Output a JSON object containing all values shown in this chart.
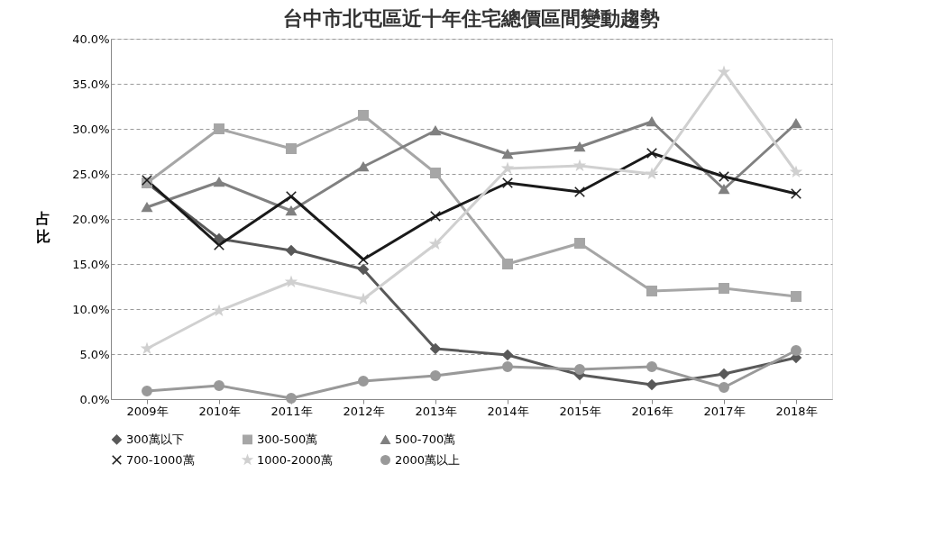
{
  "chart_data": {
    "type": "line",
    "title": "台中市北屯區近十年住宅總價區間變動趨勢",
    "ylabel": "占比",
    "categories": [
      "2009年",
      "2010年",
      "2011年",
      "2012年",
      "2013年",
      "2014年",
      "2015年",
      "2016年",
      "2017年",
      "2018年"
    ],
    "series": [
      {
        "name": "300萬以下",
        "color": "#595959",
        "marker": "diamond",
        "values": [
          24.0,
          17.8,
          16.5,
          14.4,
          5.6,
          4.9,
          2.7,
          1.6,
          2.8,
          4.6
        ]
      },
      {
        "name": "300-500萬",
        "color": "#a6a6a6",
        "marker": "square",
        "values": [
          24.0,
          30.0,
          27.8,
          31.5,
          25.1,
          15.0,
          17.3,
          12.0,
          12.3,
          11.4
        ]
      },
      {
        "name": "500-700萬",
        "color": "#808080",
        "marker": "triangle",
        "values": [
          21.3,
          24.1,
          20.9,
          25.8,
          29.8,
          27.2,
          28.0,
          30.8,
          23.3,
          30.6
        ]
      },
      {
        "name": "700-1000萬",
        "color": "#1a1a1a",
        "marker": "cross",
        "values": [
          24.3,
          17.1,
          22.5,
          15.5,
          20.3,
          24.0,
          23.0,
          27.3,
          24.7,
          22.8
        ]
      },
      {
        "name": "1000-2000萬",
        "color": "#d0d0d0",
        "marker": "star",
        "values": [
          5.6,
          9.8,
          13.0,
          11.1,
          17.2,
          25.6,
          25.9,
          25.0,
          36.3,
          25.2
        ]
      },
      {
        "name": "2000萬以上",
        "color": "#999999",
        "marker": "circle",
        "values": [
          0.9,
          1.5,
          0.1,
          2.0,
          2.6,
          3.6,
          3.3,
          3.6,
          1.3,
          5.4
        ]
      }
    ],
    "ylim": [
      0,
      40
    ],
    "yticks": [
      {
        "value": 0,
        "label": "0.0%"
      },
      {
        "value": 5,
        "label": "5.0%"
      },
      {
        "value": 10,
        "label": "10.0%"
      },
      {
        "value": 15,
        "label": "15.0%"
      },
      {
        "value": 20,
        "label": "20.0%"
      },
      {
        "value": 25,
        "label": "25.0%"
      },
      {
        "value": 30,
        "label": "30.0%"
      },
      {
        "value": 35,
        "label": "35.0%"
      },
      {
        "value": 40,
        "label": "40.0%"
      }
    ],
    "grid": "y",
    "legend": "bottom",
    "line_style": "solid"
  }
}
